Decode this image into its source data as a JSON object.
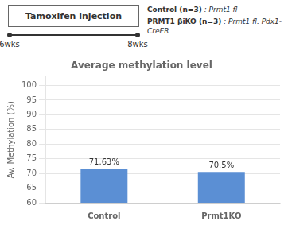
{
  "chart_data": {
    "type": "bar",
    "title": "Average methylation level",
    "ylabel": "Av. Methylation (%)",
    "categories": [
      "Control",
      "Prmt1KO"
    ],
    "values": [
      71.63,
      70.5
    ],
    "value_labels": [
      "71.63%",
      "70.5%"
    ],
    "data_labels": true,
    "color": "#5b8fd4",
    "ylim": [
      60,
      103
    ],
    "yticks": [
      60,
      65,
      70,
      75,
      80,
      85,
      90,
      95,
      100
    ],
    "grid": true,
    "annotations": [
      "Tamoxifen injection",
      "6wks",
      "8wks",
      "Control (n=3)",
      ": Prmt1 fl",
      "PRMT1 βiKO (n=3)",
      ": Prmt1 fl. Pdx1-CreER"
    ]
  }
}
